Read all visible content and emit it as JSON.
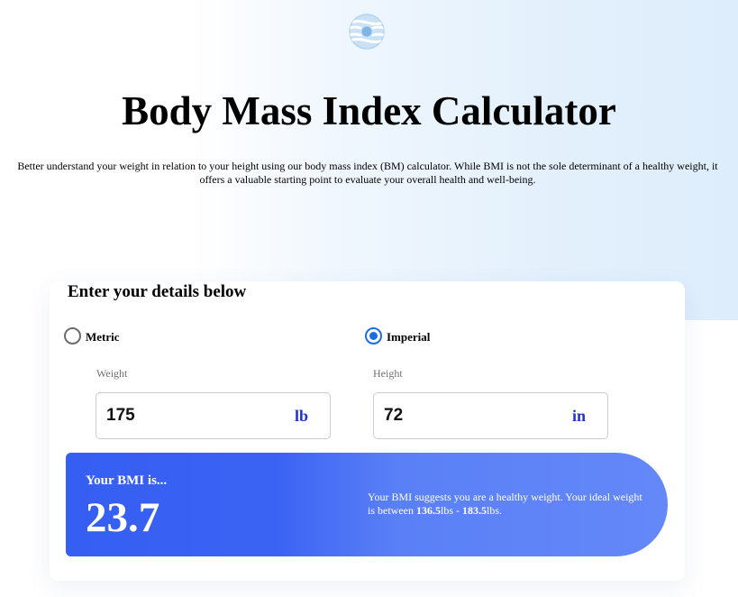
{
  "header": {
    "logo_icon": "bmi-logo-icon",
    "title": "Body Mass Index Calculator",
    "intro": "Better understand your weight in relation to your height using our body mass index (BM) calculator. While BMI is not the sole determinant of a healthy weight, it offers a valuable starting point to evaluate your overall health and well-being."
  },
  "form": {
    "title": "Enter your details below",
    "units": {
      "metric_label": "Metric",
      "imperial_label": "Imperial",
      "selected": "Imperial"
    },
    "weight": {
      "label": "Weight",
      "value": "175",
      "unit": "lb"
    },
    "height": {
      "label": "Height",
      "value": "72",
      "unit": "in"
    }
  },
  "result": {
    "heading": "Your BMI is...",
    "value": "23.7",
    "message_prefix": "Your BMI suggests you are a healthy weight. Your ideal weight is between ",
    "range_low": "136.5",
    "unit_low": "lbs",
    "separator": " - ",
    "range_high": "183.5",
    "unit_high": "lbs",
    "message_suffix": "."
  },
  "colors": {
    "accent": "#355ef3",
    "unit_text": "#2233c8",
    "radio_checked": "#1a6fe0"
  }
}
